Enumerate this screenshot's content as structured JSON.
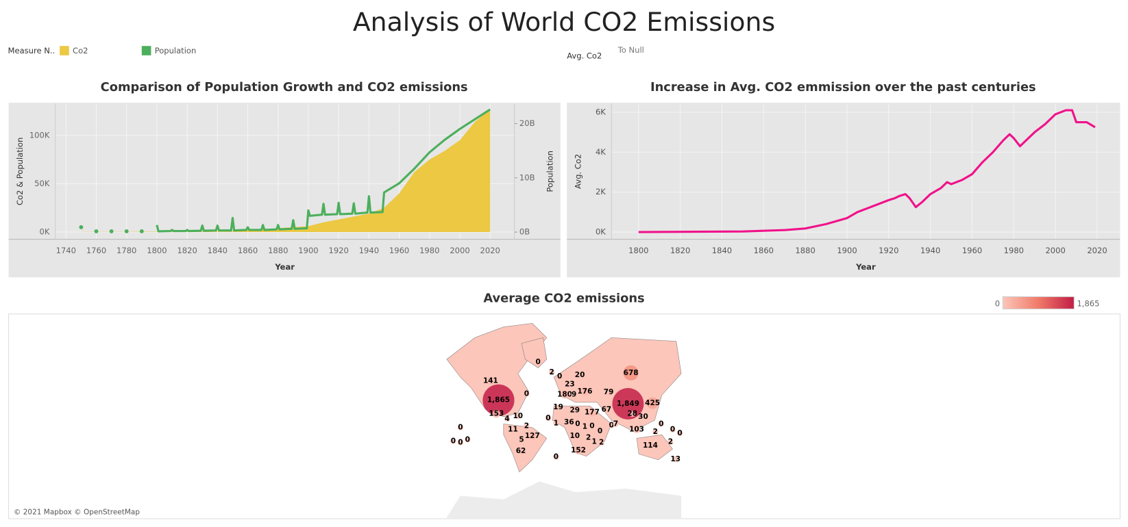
{
  "title": "Analysis of World CO2 Emissions",
  "legend": {
    "title": "Measure N..",
    "avg_label": "Avg. Co2",
    "avg_null": "To Null"
  },
  "chart_data": [
    {
      "type": "combo",
      "title": "Comparison of Population Growth and CO2 emissions",
      "x_label": "Year",
      "y_label": "Co2 & Population",
      "y2_label": "Population",
      "xlim": [
        1733,
        2036
      ],
      "xticks": [
        1740,
        1760,
        1780,
        1800,
        1820,
        1840,
        1860,
        1880,
        1900,
        1920,
        1940,
        1960,
        1980,
        2000,
        2020
      ],
      "ylim": [
        -7500,
        133000
      ],
      "yticks": [
        {
          "value": 0,
          "label": "0K"
        },
        {
          "value": 50000,
          "label": "50K"
        },
        {
          "value": 100000,
          "label": "100K"
        }
      ],
      "y2lim": [
        -1320000000,
        23700000000
      ],
      "y2ticks": [
        {
          "value": 0,
          "label": "0B"
        },
        {
          "value": 10000000000,
          "label": "10B"
        },
        {
          "value": 20000000000,
          "label": "20B"
        }
      ],
      "grid": true,
      "series": [
        {
          "name": "Co2",
          "type": "area",
          "color": "#ecc843",
          "x": [
            1750,
            1760,
            1770,
            1780,
            1790,
            1800,
            1810,
            1820,
            1830,
            1840,
            1850,
            1860,
            1870,
            1880,
            1890,
            1900,
            1910,
            1920,
            1930,
            1940,
            1950,
            1960,
            1970,
            1980,
            1990,
            2000,
            2010,
            2020
          ],
          "values": [
            200,
            200,
            200,
            200,
            300,
            300,
            300,
            400,
            400,
            500,
            500,
            2000,
            2500,
            4000,
            5000,
            6000,
            10000,
            13000,
            16000,
            19000,
            25000,
            40000,
            62000,
            75000,
            84000,
            95000,
            114000,
            127000
          ]
        },
        {
          "name": "Population",
          "type": "line",
          "axis": "y2",
          "color": "#4caf5c",
          "x": [
            1750,
            1755,
            1760,
            1765,
            1770,
            1775,
            1780,
            1785,
            1790,
            1795,
            1800,
            1801,
            1809,
            1810,
            1811,
            1819,
            1820,
            1821,
            1829,
            1830,
            1831,
            1839,
            1840,
            1841,
            1849,
            1850,
            1851,
            1859,
            1860,
            1861,
            1869,
            1870,
            1871,
            1879,
            1880,
            1881,
            1889,
            1890,
            1891,
            1899,
            1900,
            1901,
            1909,
            1910,
            1911,
            1919,
            1920,
            1921,
            1929,
            1930,
            1931,
            1939,
            1940,
            1941,
            1949,
            1950,
            1960,
            1970,
            1980,
            1990,
            2000,
            2010,
            2020
          ],
          "values": [
            900000000.0,
            null,
            150000000.0,
            null,
            150000000.0,
            null,
            150000000.0,
            null,
            150000000.0,
            null,
            1300000000.0,
            150000000.0,
            200000000.0,
            400000000.0,
            200000000.0,
            200000000.0,
            400000000.0,
            200000000.0,
            250000000.0,
            1200000000.0,
            250000000.0,
            300000000.0,
            1200000000.0,
            300000000.0,
            300000000.0,
            2600000000.0,
            300000000.0,
            400000000.0,
            900000000.0,
            400000000.0,
            400000000.0,
            1300000000.0,
            400000000.0,
            500000000.0,
            1300000000.0,
            500000000.0,
            600000000.0,
            2200000000.0,
            600000000.0,
            700000000.0,
            4000000000.0,
            3000000000.0,
            3200000000.0,
            5200000000.0,
            3200000000.0,
            3300000000.0,
            5400000000.0,
            3300000000.0,
            3400000000.0,
            5300000000.0,
            3400000000.0,
            3600000000.0,
            6600000000.0,
            3600000000.0,
            3700000000.0,
            7300000000.0,
            9000000000.0,
            11700000000.0,
            14700000000.0,
            17000000000.0,
            19000000000.0,
            20800000000.0,
            22600000000.0
          ]
        }
      ]
    },
    {
      "type": "line",
      "title": "Increase in Avg. CO2 emmission over the past centuries",
      "x_label": "Year",
      "y_label": "Avg. Co2",
      "xlim": [
        1787,
        2031
      ],
      "xticks": [
        1800,
        1820,
        1840,
        1860,
        1880,
        1900,
        1920,
        1940,
        1960,
        1980,
        2000,
        2020
      ],
      "ylim": [
        -360,
        6440
      ],
      "yticks": [
        {
          "value": 0,
          "label": "0K"
        },
        {
          "value": 2000,
          "label": "2K"
        },
        {
          "value": 4000,
          "label": "4K"
        },
        {
          "value": 6000,
          "label": "6K"
        }
      ],
      "grid": true,
      "series": [
        {
          "name": "Avg. Co2",
          "color": "#f0128a",
          "x": [
            1800,
            1850,
            1870,
            1880,
            1890,
            1900,
            1905,
            1910,
            1915,
            1920,
            1923,
            1925,
            1928,
            1930,
            1933,
            1936,
            1940,
            1945,
            1948,
            1950,
            1955,
            1960,
            1965,
            1970,
            1975,
            1978,
            1980,
            1983,
            1985,
            1990,
            1995,
            2000,
            2005,
            2008,
            2010,
            2015,
            2019
          ],
          "values": [
            0,
            30,
            100,
            180,
            400,
            700,
            1000,
            1200,
            1400,
            1600,
            1700,
            1800,
            1900,
            1700,
            1250,
            1500,
            1900,
            2200,
            2500,
            2400,
            2600,
            2900,
            3500,
            4000,
            4600,
            4900,
            4700,
            4300,
            4500,
            5000,
            5400,
            5900,
            6100,
            6100,
            5500,
            5500,
            5250
          ]
        }
      ]
    }
  ],
  "map": {
    "title": "Average CO2 emissions",
    "scale": [
      {
        "value": 0,
        "label": "0"
      },
      {
        "value": 1865,
        "label": "1,865"
      }
    ],
    "colors": [
      "#fcc6ba",
      "#f07a68",
      "#c21c46"
    ],
    "values": [
      0,
      2,
      0,
      20,
      678,
      141,
      23,
      0,
      180,
      9,
      176,
      79,
      1865,
      1849,
      425,
      19,
      29,
      67,
      177,
      153,
      4,
      10,
      28,
      30,
      0,
      1,
      36,
      0,
      1,
      0,
      0,
      7,
      2,
      103,
      11,
      0,
      0,
      0,
      2,
      0,
      0,
      0,
      0,
      5,
      127,
      10,
      2,
      0,
      1,
      2,
      114,
      2,
      152,
      62,
      0,
      13
    ],
    "value_labels": [
      "0",
      "2",
      "0",
      "20",
      "678",
      "141",
      "23",
      "0",
      "180",
      "9",
      "176",
      "79",
      "1,865",
      "1,849",
      "425",
      "19",
      "29",
      "67",
      "177",
      "153",
      "4",
      "10",
      "28",
      "30",
      "0",
      "1",
      "36",
      "0",
      "1",
      "0",
      "0",
      "7",
      "2",
      "103",
      "11",
      "0",
      "0",
      "0",
      "2",
      "0",
      "0",
      "0",
      "0",
      "5",
      "127",
      "10",
      "2",
      "0",
      "1",
      "2",
      "114",
      "2",
      "152",
      "62",
      "0",
      "13"
    ],
    "attribution": "© 2021 Mapbox © OpenStreetMap"
  }
}
